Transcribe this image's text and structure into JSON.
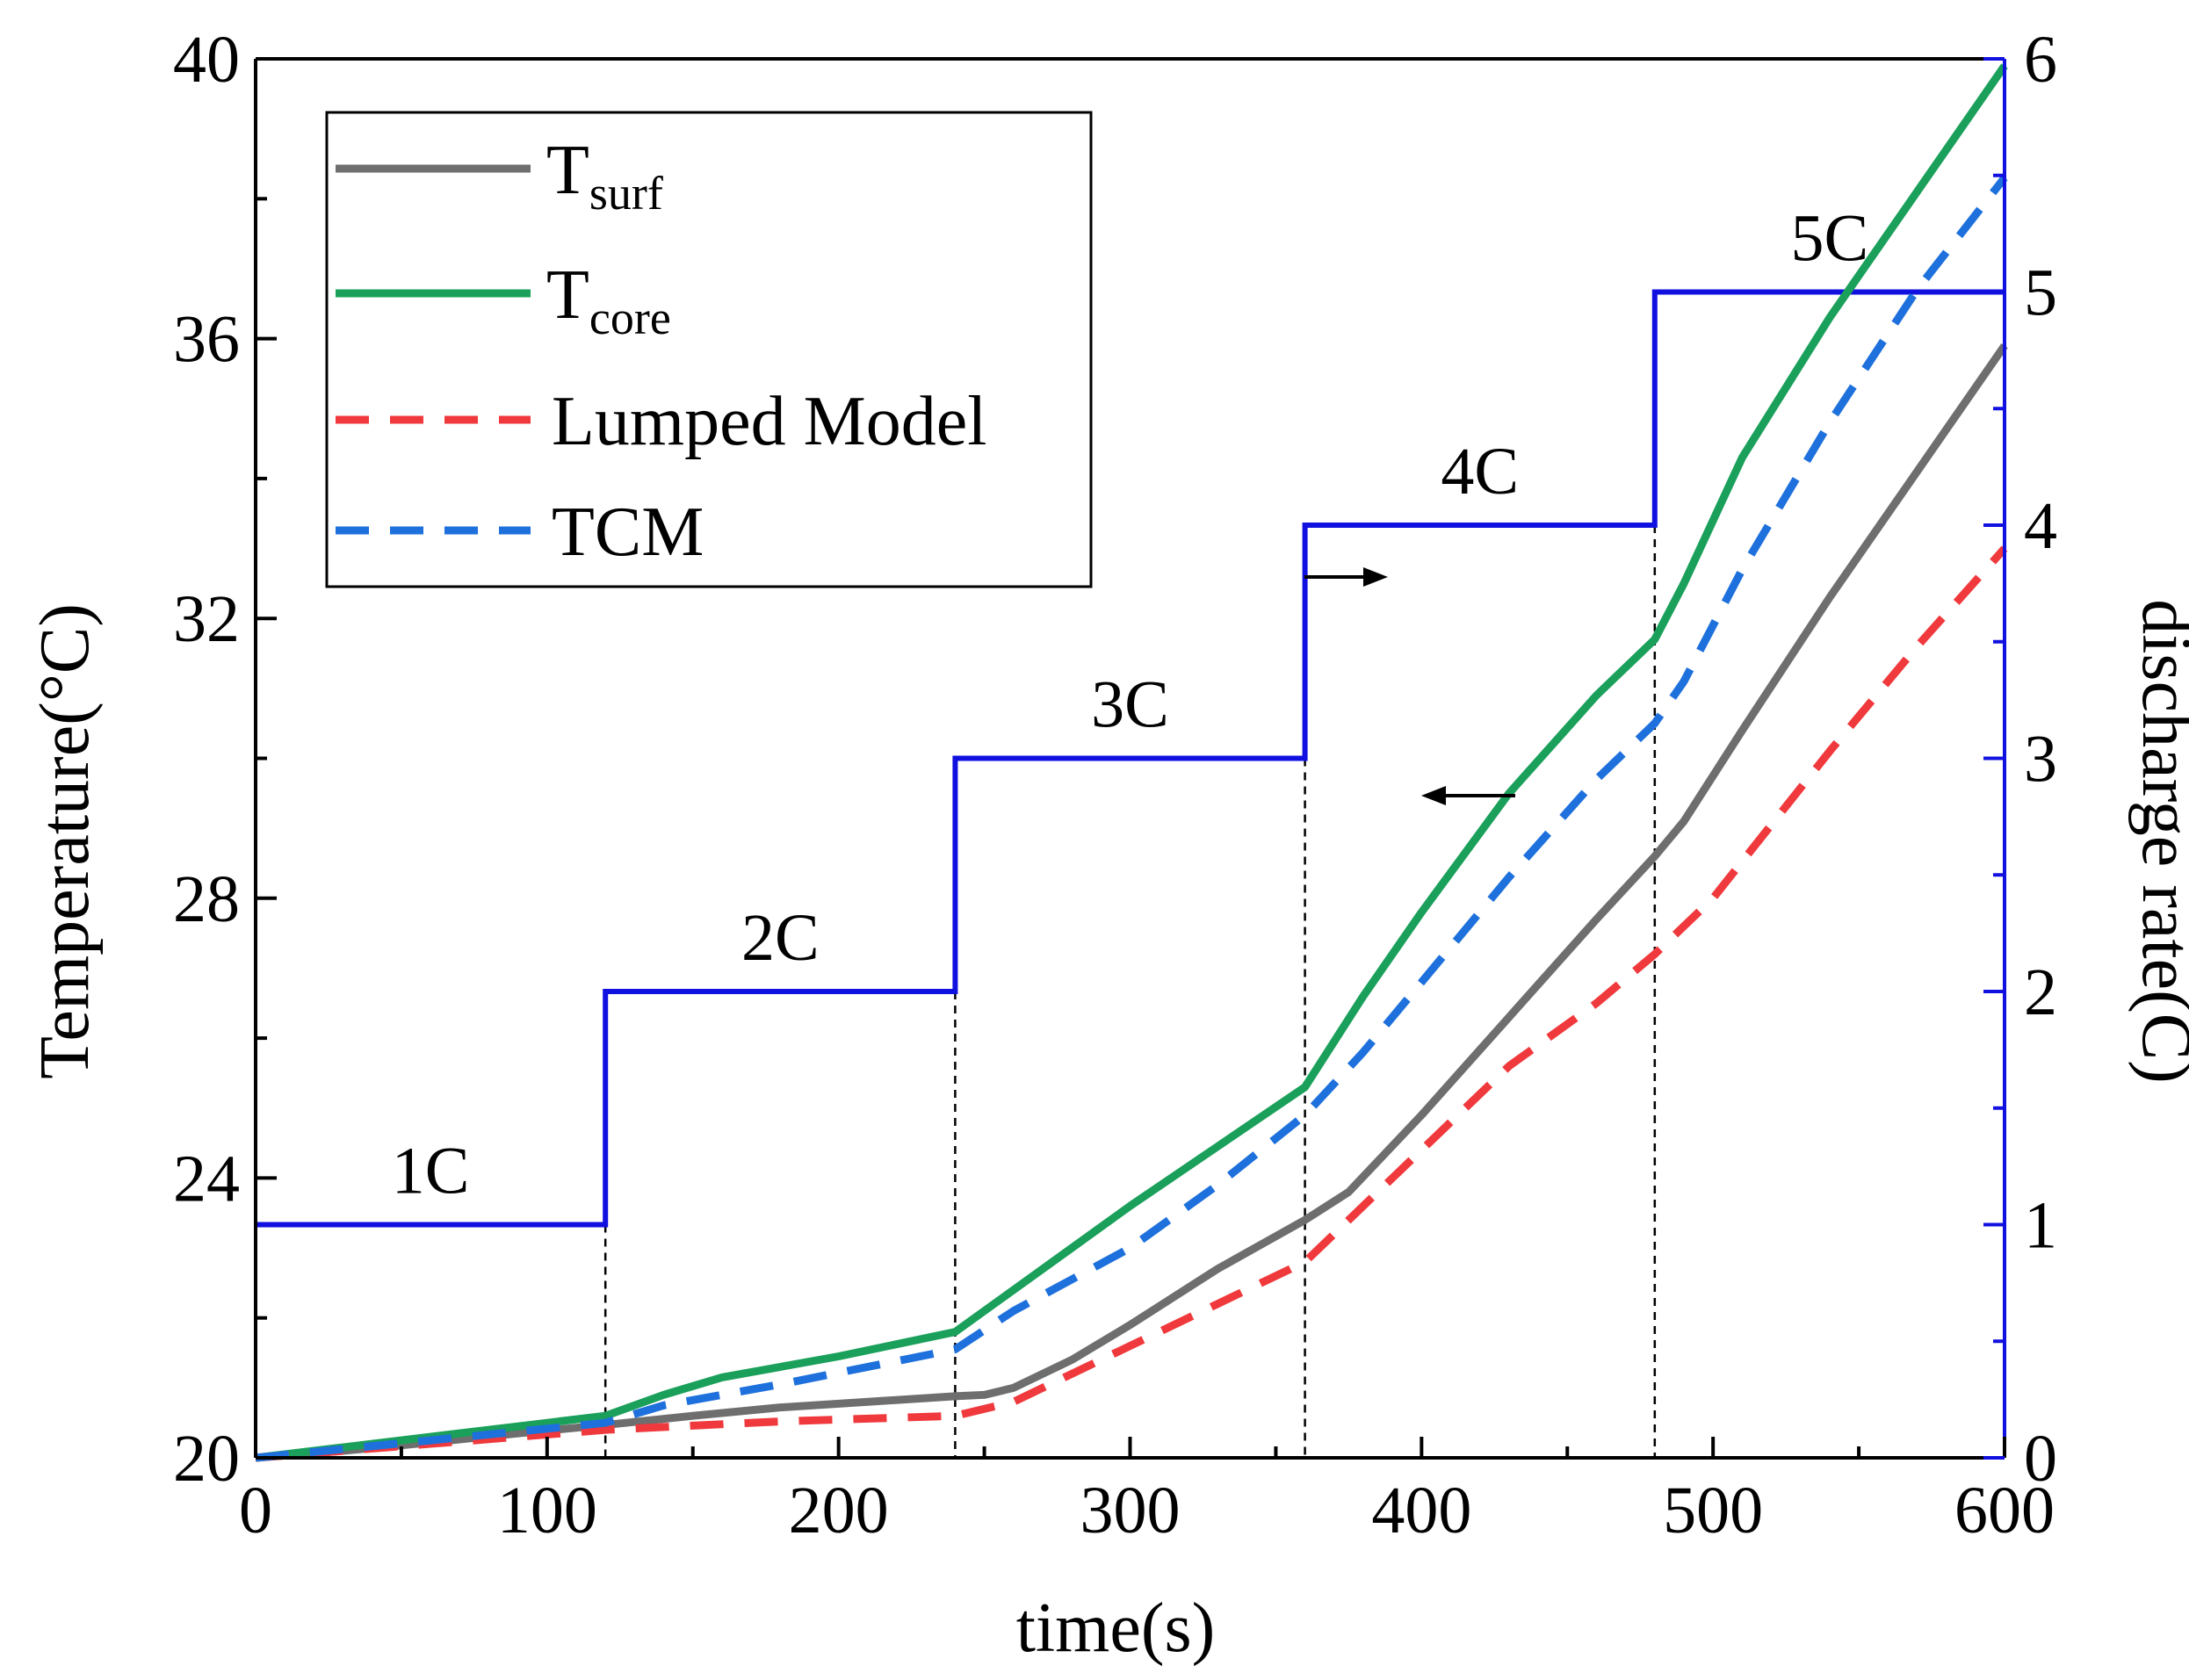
{
  "chart_data": {
    "type": "line",
    "xlabel": "time(s)",
    "ylabel": "Temperature(°C)",
    "y2label": "discharge rate(C)",
    "xlim": [
      0,
      600
    ],
    "ylim": [
      20,
      40
    ],
    "y2lim": [
      0,
      6
    ],
    "x_ticks": [
      0,
      100,
      200,
      300,
      400,
      500,
      600
    ],
    "y_ticks": [
      20,
      24,
      28,
      32,
      36,
      40
    ],
    "y2_ticks": [
      0,
      1,
      2,
      3,
      4,
      5,
      6
    ],
    "colors": {
      "surf": "#6e6e6e",
      "core": "#1aa05a",
      "lumped": "#f0393c",
      "tcm": "#1e70dc",
      "rate": "#1010e0",
      "axis2": "#1010e0"
    },
    "legend": [
      {
        "key": "surf",
        "main": "T",
        "sub": "surf"
      },
      {
        "key": "core",
        "main": "T",
        "sub": "core"
      },
      {
        "key": "lumped",
        "main": "Lumped Model",
        "sub": ""
      },
      {
        "key": "tcm",
        "main": "TCM",
        "sub": ""
      }
    ],
    "series": [
      {
        "name": "T_surf",
        "key": "surf",
        "dashed": false,
        "x": [
          0,
          30,
          60,
          90,
          120,
          150,
          180,
          210,
          240,
          250,
          260,
          280,
          300,
          330,
          360,
          375,
          400,
          430,
          460,
          480,
          490,
          510,
          540,
          570,
          600
        ],
        "y": [
          20.0,
          20.1,
          20.22,
          20.35,
          20.47,
          20.6,
          20.72,
          20.8,
          20.88,
          20.9,
          21.0,
          21.4,
          21.9,
          22.7,
          23.4,
          23.8,
          24.9,
          26.3,
          27.7,
          28.6,
          29.1,
          30.4,
          32.3,
          34.1,
          35.9
        ]
      },
      {
        "name": "T_core",
        "key": "core",
        "dashed": false,
        "x": [
          0,
          30,
          60,
          90,
          120,
          140,
          160,
          200,
          240,
          260,
          280,
          300,
          330,
          360,
          380,
          400,
          430,
          460,
          480,
          490,
          510,
          540,
          570,
          600
        ],
        "y": [
          20.0,
          20.15,
          20.3,
          20.45,
          20.6,
          20.9,
          21.15,
          21.45,
          21.8,
          22.4,
          23.0,
          23.6,
          24.45,
          25.3,
          26.6,
          27.8,
          29.5,
          30.9,
          31.7,
          32.5,
          34.3,
          36.3,
          38.1,
          39.9
        ]
      },
      {
        "name": "Lumped Model",
        "key": "lumped",
        "dashed": true,
        "x": [
          0,
          60,
          120,
          180,
          240,
          260,
          300,
          330,
          360,
          380,
          400,
          430,
          460,
          480,
          500,
          540,
          570,
          600
        ],
        "y": [
          20.0,
          20.2,
          20.4,
          20.52,
          20.6,
          20.8,
          21.6,
          22.2,
          22.8,
          23.6,
          24.4,
          25.6,
          26.5,
          27.2,
          28.0,
          30.1,
          31.6,
          33.0
        ]
      },
      {
        "name": "TCM",
        "key": "tcm",
        "dashed": true,
        "x": [
          0,
          60,
          120,
          140,
          180,
          240,
          260,
          300,
          330,
          360,
          380,
          400,
          430,
          460,
          480,
          490,
          510,
          540,
          570,
          600
        ],
        "y": [
          20.0,
          20.25,
          20.5,
          20.75,
          21.05,
          21.55,
          22.1,
          23.0,
          23.9,
          24.9,
          25.8,
          26.8,
          28.3,
          29.7,
          30.5,
          31.1,
          32.7,
          34.8,
          36.7,
          38.3
        ]
      }
    ],
    "discharge_rate": {
      "steps": [
        {
          "x0": 0,
          "x1": 120,
          "rate": 1,
          "label": "1C"
        },
        {
          "x0": 120,
          "x1": 240,
          "rate": 2,
          "label": "2C"
        },
        {
          "x0": 240,
          "x1": 360,
          "rate": 3,
          "label": "3C"
        },
        {
          "x0": 360,
          "x1": 480,
          "rate": 4,
          "label": "4C"
        },
        {
          "x0": 480,
          "x1": 600,
          "rate": 5,
          "label": "5C"
        }
      ],
      "dividers": [
        120,
        240,
        360,
        480
      ]
    },
    "annotations": [
      {
        "type": "arrow",
        "direction": "right",
        "meaning": "discharge rate uses right axis"
      },
      {
        "type": "arrow",
        "direction": "left",
        "meaning": "temperature uses left axis"
      }
    ]
  }
}
